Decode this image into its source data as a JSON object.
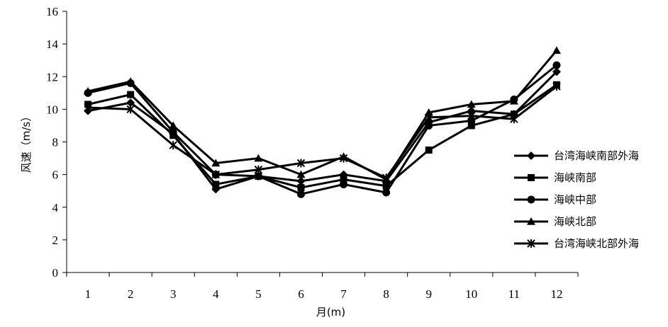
{
  "chart_data": {
    "type": "line",
    "title": "",
    "xlabel": "月(m)",
    "ylabel": "风速（m/s）",
    "x": [
      1,
      2,
      3,
      4,
      5,
      6,
      7,
      8,
      9,
      10,
      11,
      12
    ],
    "xticks": [
      "1",
      "2",
      "3",
      "4",
      "5",
      "6",
      "7",
      "8",
      "9",
      "10",
      "11",
      "12"
    ],
    "ylim": [
      0,
      16
    ],
    "yticks": [
      "0",
      "2",
      "4",
      "6",
      "8",
      "10",
      "12",
      "14",
      "16"
    ],
    "grid": false,
    "legend_position": "right",
    "series": [
      {
        "name": "台湾海峡南部外海",
        "marker": "diamond",
        "values": [
          9.9,
          10.4,
          8.5,
          5.1,
          5.9,
          5.6,
          6.0,
          5.6,
          9.2,
          9.9,
          9.7,
          12.3
        ]
      },
      {
        "name": "海峡南部",
        "marker": "square",
        "values": [
          10.3,
          10.9,
          8.4,
          5.4,
          5.9,
          5.2,
          5.7,
          5.3,
          7.5,
          9.0,
          9.7,
          11.5
        ]
      },
      {
        "name": "海峡中部",
        "marker": "circle",
        "values": [
          11.0,
          11.6,
          8.6,
          6.0,
          5.9,
          4.8,
          5.4,
          4.9,
          9.0,
          9.3,
          10.6,
          12.7
        ]
      },
      {
        "name": "海峡北部",
        "marker": "triangle",
        "values": [
          11.1,
          11.7,
          9.0,
          6.7,
          7.0,
          6.0,
          7.1,
          5.7,
          9.8,
          10.3,
          10.5,
          13.6
        ]
      },
      {
        "name": "台湾海峡北部外海",
        "marker": "asterisk",
        "values": [
          10.1,
          10.0,
          7.8,
          6.0,
          6.3,
          6.7,
          7.0,
          5.8,
          9.5,
          9.6,
          9.4,
          11.4
        ]
      }
    ]
  }
}
